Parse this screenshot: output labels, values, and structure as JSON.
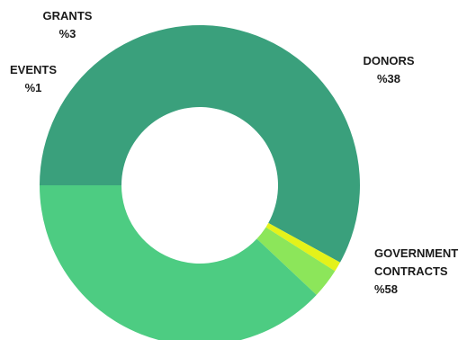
{
  "chart_data": {
    "type": "pie",
    "donut": true,
    "start_angle_deg": 180,
    "direction": "clockwise",
    "title": "",
    "slices": [
      {
        "name": "GOVERNMENT CONTRACTS",
        "value": 58,
        "value_label": "%58",
        "color": "#3aa07c"
      },
      {
        "name": "EVENTS",
        "value": 1,
        "value_label": "%1",
        "color": "#e4f21a"
      },
      {
        "name": "GRANTS",
        "value": 3,
        "value_label": "%3",
        "color": "#8ce65a"
      },
      {
        "name": "DONORS",
        "value": 38,
        "value_label": "%38",
        "color": "#4dcc82"
      }
    ]
  }
}
